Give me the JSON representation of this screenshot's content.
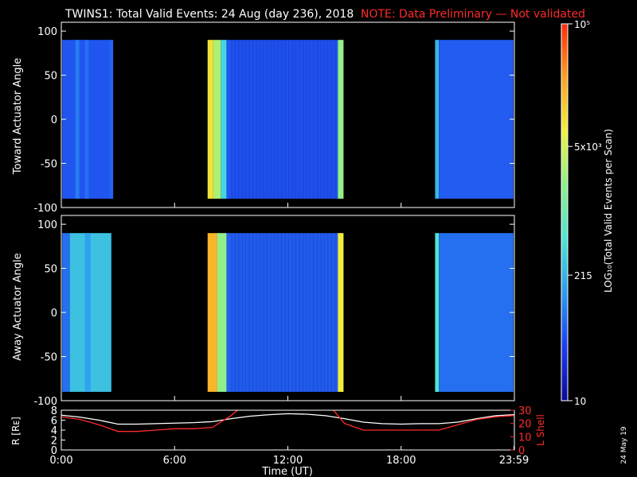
{
  "title": {
    "main": "TWINS1: Total Valid Events: 24 Aug (day 236), 2018",
    "note": "NOTE: Data Preliminary — Not validated"
  },
  "stamp": "24 May 19",
  "colors": {
    "background": "#000000",
    "text": "#ffffff",
    "note": "#ff2a2a",
    "r_line": "#ffffff",
    "lshell_line": "#ff2a2a",
    "colorbar_stops": [
      "#0a0a9a",
      "#1e3cf0",
      "#2a9cf0",
      "#4ce4d4",
      "#8cf08c",
      "#f0f040",
      "#ffa020",
      "#ff2a0a"
    ]
  },
  "chart_data": [
    {
      "type": "heatmap",
      "ylabel": "Toward Actuator Angle",
      "ylim": [
        -100,
        110
      ],
      "yticks": [
        "100",
        "50",
        "0",
        "-50",
        "-100"
      ],
      "ytick_values": [
        100,
        50,
        0,
        -50,
        -100
      ],
      "angle_range": [
        -90,
        90
      ],
      "x_hours": [
        0,
        24
      ],
      "bands": [
        {
          "start": 0.05,
          "end": 2.65,
          "level": 0.18
        },
        {
          "start": 0.75,
          "end": 0.95,
          "level": 0.24
        },
        {
          "start": 1.25,
          "end": 1.45,
          "level": 0.22
        },
        {
          "start": 2.55,
          "end": 2.75,
          "level": 0.2
        },
        {
          "start": 7.75,
          "end": 8.05,
          "level": 0.74
        },
        {
          "start": 8.05,
          "end": 8.45,
          "level": 0.62
        },
        {
          "start": 8.45,
          "end": 8.75,
          "level": 0.4
        },
        {
          "start": 8.75,
          "end": 14.65,
          "level": 0.18
        },
        {
          "start": 14.65,
          "end": 14.95,
          "level": 0.58
        },
        {
          "start": 19.8,
          "end": 20.0,
          "level": 0.34
        },
        {
          "start": 20.0,
          "end": 23.95,
          "level": 0.19
        }
      ]
    },
    {
      "type": "heatmap",
      "ylabel": "Away Actuator Angle",
      "ylim": [
        -100,
        110
      ],
      "yticks": [
        "100",
        "50",
        "0",
        "-50",
        "-100"
      ],
      "ytick_values": [
        100,
        50,
        0,
        -50,
        -100
      ],
      "angle_range": [
        -90,
        90
      ],
      "x_hours": [
        0,
        24
      ],
      "bands": [
        {
          "start": 0.05,
          "end": 0.45,
          "level": 0.22
        },
        {
          "start": 0.45,
          "end": 2.65,
          "level": 0.36
        },
        {
          "start": 1.25,
          "end": 1.55,
          "level": 0.3
        },
        {
          "start": 7.75,
          "end": 8.25,
          "level": 0.82
        },
        {
          "start": 8.25,
          "end": 8.75,
          "level": 0.58
        },
        {
          "start": 8.75,
          "end": 14.65,
          "level": 0.2
        },
        {
          "start": 14.65,
          "end": 14.95,
          "level": 0.72
        },
        {
          "start": 19.8,
          "end": 20.0,
          "level": 0.44
        },
        {
          "start": 20.0,
          "end": 23.95,
          "level": 0.22
        }
      ]
    },
    {
      "type": "line",
      "ylabel_left": "R [Rᴇ]",
      "ylabel_right": "L Shell",
      "ylim_left": [
        0,
        8
      ],
      "ylim_right": [
        0,
        30
      ],
      "yticks_left": [
        "8",
        "6",
        "4",
        "2",
        "0"
      ],
      "ytick_values_left": [
        8,
        6,
        4,
        2,
        0
      ],
      "yticks_right": [
        "30",
        "20",
        "10",
        "0"
      ],
      "ytick_values_right": [
        30,
        20,
        10,
        0
      ],
      "xlabel": "Time (UT)",
      "xticks": [
        "0:00",
        "6:00",
        "12:00",
        "18:00",
        "23:59"
      ],
      "xtick_values": [
        0,
        6,
        12,
        18,
        23.98
      ],
      "xlim": [
        0,
        24
      ],
      "series": [
        {
          "axis": "left",
          "x": [
            0,
            1,
            2,
            3,
            4,
            5,
            6,
            7,
            8,
            9,
            10,
            11,
            12,
            13,
            14,
            15,
            16,
            17,
            18,
            19,
            20,
            21,
            22,
            23,
            24
          ],
          "values": [
            7.0,
            6.6,
            6.0,
            5.2,
            5.2,
            5.3,
            5.4,
            5.5,
            5.7,
            6.3,
            6.8,
            7.1,
            7.3,
            7.2,
            6.9,
            6.3,
            5.6,
            5.3,
            5.2,
            5.3,
            5.3,
            5.6,
            6.3,
            6.9,
            7.1
          ]
        },
        {
          "axis": "right",
          "x": [
            0,
            1,
            2,
            3,
            4,
            5,
            6,
            7,
            8,
            9,
            9.5,
            14.3,
            15,
            16,
            17,
            18,
            19,
            20,
            21,
            22,
            23,
            24
          ],
          "values": [
            25,
            23,
            19,
            14,
            14,
            15,
            16,
            16,
            17,
            26,
            32,
            32,
            20,
            15,
            15,
            15,
            15,
            15,
            19,
            23,
            25,
            26
          ]
        }
      ]
    },
    {
      "type": "heatmap",
      "role": "colorbar",
      "label": "LOG₁₀(Total Valid Events per Scan)",
      "ticks": [
        "10⁵",
        "5x10³",
        "215",
        "10"
      ],
      "tick_values": [
        100000,
        5000,
        215,
        10
      ],
      "range": [
        10,
        100000
      ],
      "scale": "log"
    }
  ]
}
